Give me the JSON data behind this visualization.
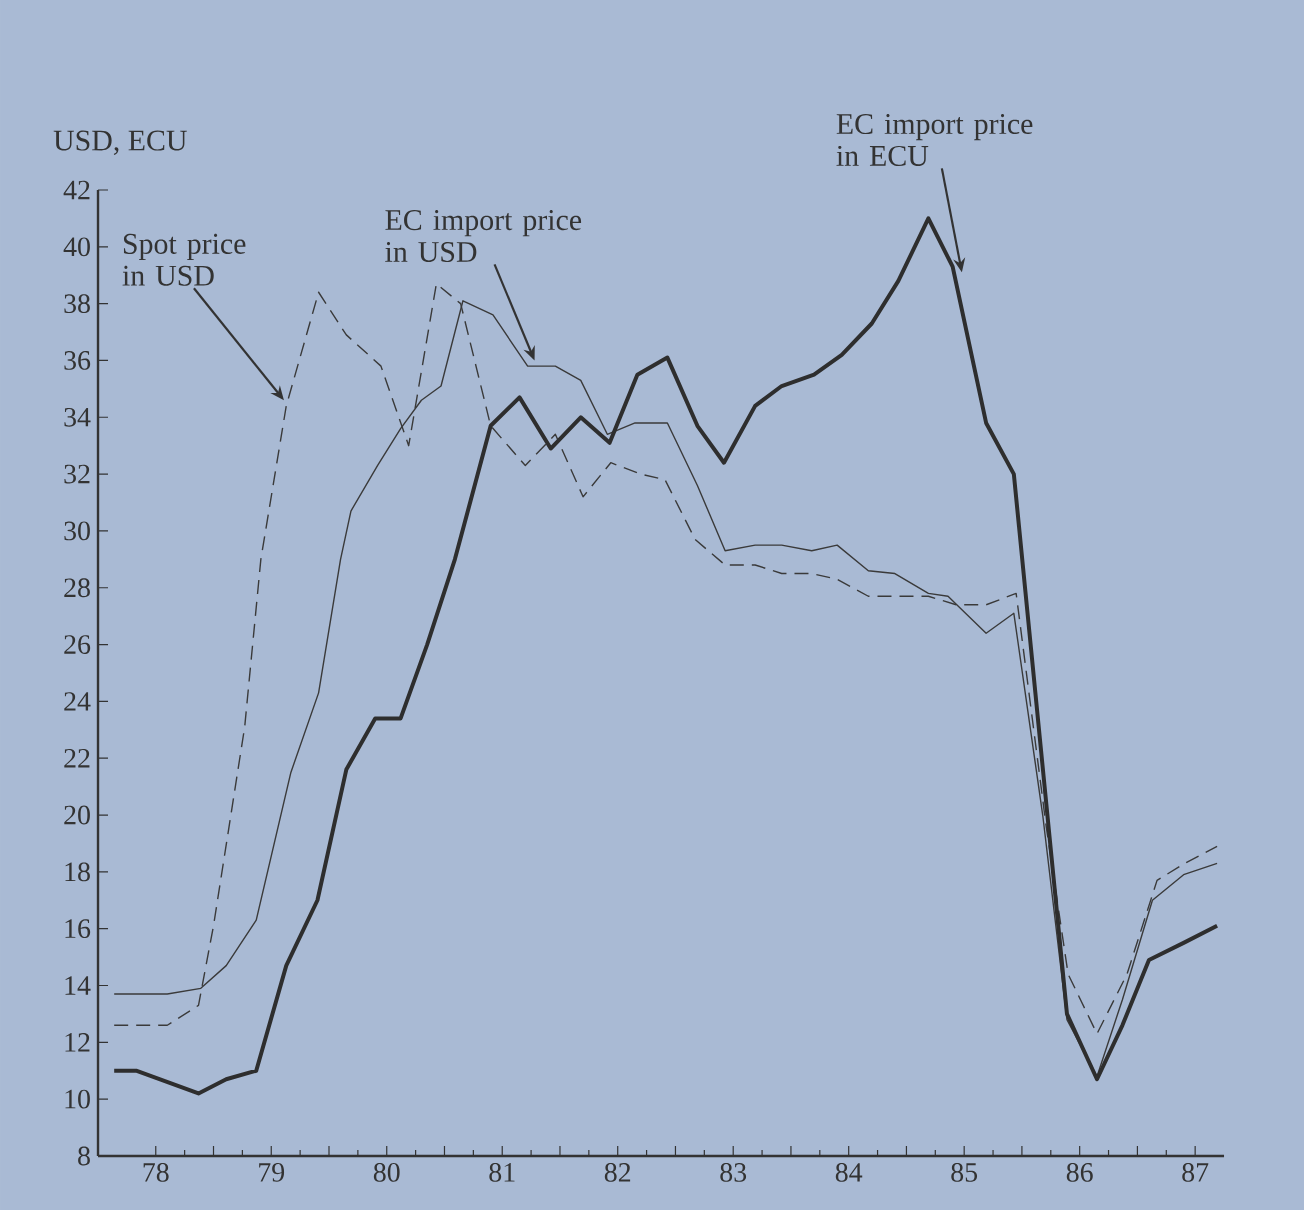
{
  "chart_data": {
    "type": "line",
    "ylabel": "USD, ECU",
    "xlim": [
      77.5,
      87.25
    ],
    "ylim": [
      8,
      42
    ],
    "yticks": [
      8,
      10,
      12,
      14,
      16,
      18,
      20,
      22,
      24,
      26,
      28,
      30,
      32,
      34,
      36,
      38,
      40,
      42
    ],
    "xticks": [
      78,
      {
        "value": 78.5,
        "label": null
      },
      79,
      {
        "value": 79.5,
        "label": null
      },
      80,
      {
        "value": 80.5,
        "label": null
      },
      81,
      {
        "value": 81.5,
        "label": null
      },
      82,
      {
        "value": 82.5,
        "label": null
      },
      83,
      {
        "value": 83.5,
        "label": null
      },
      84,
      {
        "value": 84.5,
        "label": null
      },
      85,
      {
        "value": 85.5,
        "label": null
      },
      86,
      {
        "value": 86.5,
        "label": null
      },
      87
    ],
    "grid": false,
    "marker": "none",
    "series": [
      {
        "color": "#3a3a3a",
        "line_style": "dashed",
        "x": [
          77.64,
          78.1,
          78.37,
          78.5,
          78.77,
          78.91,
          79.13,
          79.41,
          79.65,
          79.95,
          80.19,
          80.43,
          80.64,
          80.9,
          81.2,
          81.46,
          81.7,
          81.94,
          82.2,
          82.41,
          82.67,
          82.93,
          83.19,
          83.42,
          83.68,
          83.9,
          84.17,
          84.4,
          84.69,
          84.93,
          85.19,
          85.45,
          85.71,
          85.9,
          86.15,
          86.41,
          86.67,
          86.91,
          87.19
        ],
        "values": [
          12.6,
          12.6,
          13.3,
          16.1,
          23.1,
          29.0,
          34.4,
          38.4,
          36.9,
          35.8,
          33.0,
          38.7,
          38.0,
          33.7,
          32.3,
          33.4,
          31.2,
          32.4,
          32.0,
          31.8,
          29.7,
          28.8,
          28.8,
          28.5,
          28.5,
          28.3,
          27.7,
          27.7,
          27.7,
          27.4,
          27.4,
          27.8,
          19.6,
          14.4,
          12.3,
          14.4,
          17.7,
          18.3,
          18.9
        ]
      },
      {
        "color": "#3a3a3a",
        "line_style": "solid",
        "x": [
          77.64,
          78.1,
          78.39,
          78.61,
          78.87,
          79.17,
          79.41,
          79.6,
          79.69,
          79.92,
          80.12,
          80.3,
          80.47,
          80.66,
          80.92,
          81.22,
          81.46,
          81.68,
          81.91,
          82.15,
          82.43,
          82.69,
          82.93,
          83.19,
          83.42,
          83.68,
          83.9,
          84.17,
          84.4,
          84.69,
          84.86,
          85.19,
          85.43,
          85.68,
          85.89,
          86.15,
          86.37,
          86.63,
          86.9,
          87.19
        ],
        "values": [
          13.7,
          13.7,
          13.9,
          14.7,
          16.3,
          21.5,
          24.3,
          29.0,
          30.7,
          32.3,
          33.6,
          34.6,
          35.1,
          38.1,
          37.6,
          35.8,
          35.8,
          35.3,
          33.4,
          33.8,
          33.8,
          31.6,
          29.3,
          29.5,
          29.5,
          29.3,
          29.5,
          28.6,
          28.5,
          27.8,
          27.7,
          26.4,
          27.1,
          20.0,
          12.8,
          10.8,
          13.5,
          17.0,
          17.9,
          18.3
        ]
      },
      {
        "color": "#2e2e2e",
        "line_style": "solid",
        "x": [
          77.64,
          77.83,
          78.37,
          78.61,
          78.87,
          79.13,
          79.4,
          79.65,
          79.9,
          80.12,
          80.35,
          80.59,
          80.9,
          81.15,
          81.42,
          81.68,
          81.93,
          82.17,
          82.43,
          82.69,
          82.92,
          83.19,
          83.42,
          83.7,
          83.94,
          84.2,
          84.43,
          84.69,
          84.9,
          85.19,
          85.43,
          85.89,
          86.15,
          86.37,
          86.6,
          86.9,
          87.19
        ],
        "values": [
          11.0,
          11.0,
          10.2,
          10.7,
          11.0,
          14.7,
          17.0,
          21.6,
          23.4,
          23.4,
          26.0,
          29.0,
          33.7,
          34.7,
          32.9,
          34.0,
          33.1,
          35.5,
          36.1,
          33.7,
          32.4,
          34.4,
          35.1,
          35.5,
          36.2,
          37.3,
          38.8,
          41.0,
          39.3,
          33.8,
          32.0,
          13.0,
          10.7,
          12.6,
          14.9,
          15.5,
          16.1
        ]
      }
    ],
    "annotations": [
      {
        "text": "Spot price in USD",
        "x": 79.11,
        "y": 34.6
      },
      {
        "text": "EC import price in USD",
        "x": 81.28,
        "y": 36.0
      },
      {
        "text": "EC import price in ECU",
        "x": 84.98,
        "y": 39.1
      }
    ]
  }
}
